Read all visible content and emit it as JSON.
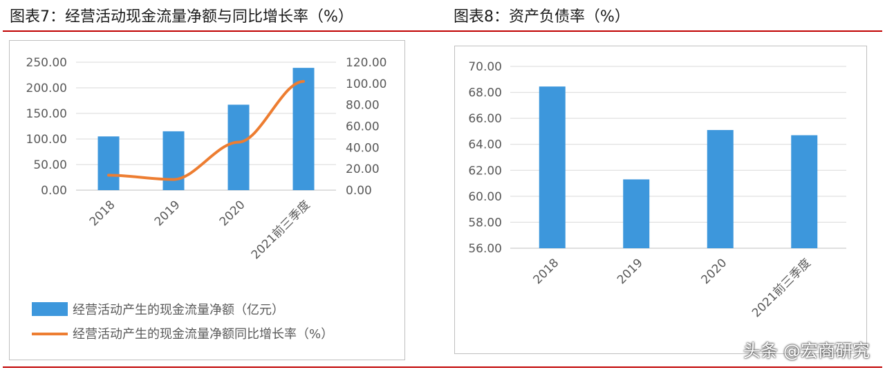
{
  "headings": {
    "left": "图表7：经营活动现金流量净额与同比增长率（%）",
    "right": "图表8：资产负债率（%）"
  },
  "watermark": "头条 @宏商研究",
  "colors": {
    "bar": "#3d97dc",
    "line": "#ed7d31",
    "rule": "#c00000",
    "grid": "#d9d9d9",
    "axis": "#595959"
  },
  "chart_data": [
    {
      "type": "bar",
      "categories": [
        "2018",
        "2019",
        "2020",
        "2021前三季度"
      ],
      "series": [
        {
          "name": "经营活动产生的现金流量净额（亿元）",
          "type": "bar",
          "axis": "left",
          "values": [
            105,
            115,
            167,
            239
          ]
        },
        {
          "name": "经营活动产生的现金流量净额同比增长率（%）",
          "type": "line",
          "axis": "right",
          "values": [
            14,
            10,
            45,
            102
          ]
        }
      ],
      "ylim": [
        0,
        250
      ],
      "yticks": [
        "0.00",
        "50.00",
        "100.00",
        "150.00",
        "200.00",
        "250.00"
      ],
      "y2lim": [
        0,
        120
      ],
      "y2ticks": [
        "0.00",
        "20.00",
        "40.00",
        "60.00",
        "80.00",
        "100.00",
        "120.00"
      ],
      "grid": true,
      "legend": "bottom"
    },
    {
      "type": "bar",
      "categories": [
        "2018",
        "2019",
        "2020",
        "2021前三季度"
      ],
      "values": [
        68.45,
        61.3,
        65.1,
        64.7
      ],
      "ylim": [
        56,
        70
      ],
      "yticks": [
        "56.00",
        "58.00",
        "60.00",
        "62.00",
        "64.00",
        "66.00",
        "68.00",
        "70.00"
      ],
      "grid": true
    }
  ]
}
